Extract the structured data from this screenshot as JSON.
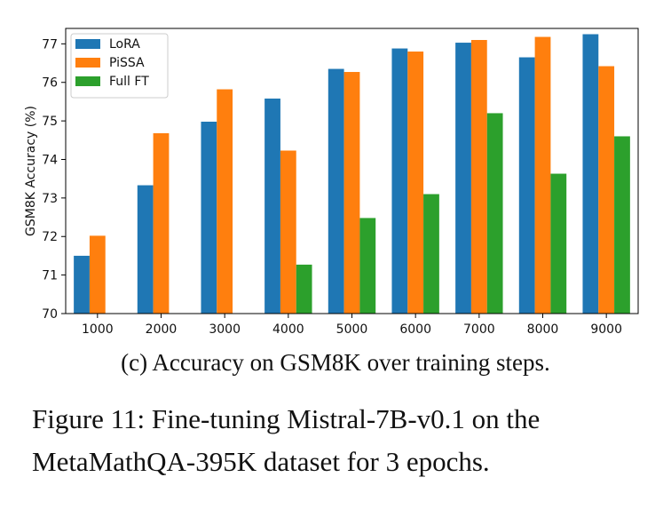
{
  "chart_data": {
    "type": "bar",
    "categories": [
      "1000",
      "2000",
      "3000",
      "4000",
      "5000",
      "6000",
      "7000",
      "8000",
      "9000"
    ],
    "series": [
      {
        "name": "LoRA",
        "color": "#1f77b4",
        "values": [
          71.5,
          73.33,
          74.98,
          75.58,
          76.35,
          76.88,
          77.03,
          76.65,
          77.25
        ]
      },
      {
        "name": "PiSSA",
        "color": "#ff7f0e",
        "values": [
          72.02,
          74.68,
          75.82,
          74.23,
          76.27,
          76.8,
          77.1,
          77.18,
          76.42
        ]
      },
      {
        "name": "Full FT",
        "color": "#2ca02c",
        "values": [
          null,
          null,
          null,
          71.27,
          72.48,
          73.1,
          75.2,
          73.63,
          74.6
        ]
      }
    ],
    "ylabel": "GSM8K Accuracy (%)",
    "xlabel": "",
    "ylim": [
      70,
      77.4
    ],
    "yticks": [
      "70",
      "71",
      "72",
      "73",
      "74",
      "75",
      "76",
      "77"
    ],
    "grid": false,
    "legend_position": "upper-left"
  },
  "captions": {
    "subcaption": "(c) Accuracy on GSM8K over training steps.",
    "figure_line1": "Figure 11: Fine-tuning Mistral-7B-v0.1 on the",
    "figure_line2": "MetaMathQA-395K dataset for 3 epochs."
  }
}
